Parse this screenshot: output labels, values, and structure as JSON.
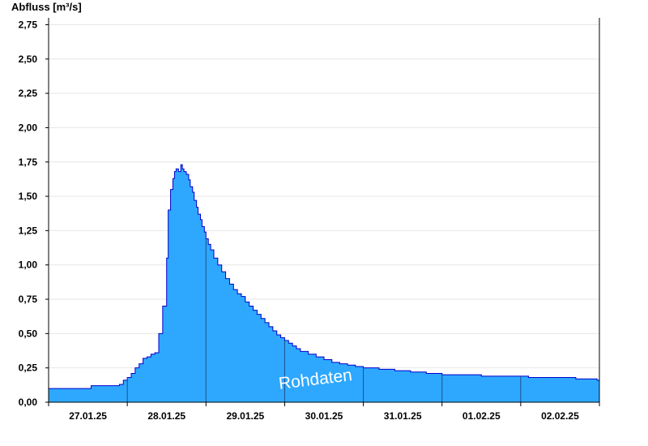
{
  "chart_data": {
    "type": "area",
    "ylabel": "Abfluss [m³/s]",
    "ylim": [
      0,
      2.8
    ],
    "yticks": [
      "0,00",
      "0,25",
      "0,50",
      "0,75",
      "1,00",
      "1,25",
      "1,50",
      "1,75",
      "2,00",
      "2,25",
      "2,50",
      "2,75"
    ],
    "xlabels": [
      "27.01.25",
      "28.01.25",
      "29.01.25",
      "30.01.25",
      "31.01.25",
      "01.02.25",
      "02.02.25"
    ],
    "xlim_days": [
      0,
      7
    ],
    "grid": true,
    "watermark": "Rohdaten",
    "fill_color": "#2ea8ff",
    "line_color": "#0000cc",
    "series": [
      {
        "x": [
          0.0,
          0.54,
          0.9,
          0.95,
          1.0,
          1.05,
          1.1,
          1.15,
          1.2,
          1.25,
          1.3,
          1.35,
          1.4,
          1.45,
          1.5,
          1.52,
          1.55,
          1.58,
          1.6,
          1.62,
          1.65,
          1.68,
          1.7,
          1.72,
          1.75,
          1.78,
          1.8,
          1.83,
          1.85,
          1.88,
          1.9,
          1.93,
          1.95,
          1.98,
          2.0,
          2.03,
          2.06,
          2.1,
          2.15,
          2.2,
          2.25,
          2.3,
          2.35,
          2.4,
          2.45,
          2.5,
          2.55,
          2.6,
          2.65,
          2.7,
          2.75,
          2.8,
          2.85,
          2.9,
          2.95,
          3.0,
          3.05,
          3.1,
          3.15,
          3.2,
          3.3,
          3.4,
          3.5,
          3.6,
          3.7,
          3.8,
          3.9,
          4.0,
          4.2,
          4.4,
          4.6,
          4.8,
          5.0,
          5.27,
          5.5,
          5.9,
          6.0,
          6.1,
          6.5,
          6.7,
          6.97,
          7.0
        ],
        "y": [
          0.1,
          0.12,
          0.13,
          0.16,
          0.18,
          0.21,
          0.25,
          0.28,
          0.32,
          0.33,
          0.35,
          0.36,
          0.5,
          0.7,
          1.05,
          1.4,
          1.55,
          1.63,
          1.68,
          1.7,
          1.68,
          1.73,
          1.7,
          1.68,
          1.66,
          1.62,
          1.57,
          1.53,
          1.47,
          1.42,
          1.37,
          1.33,
          1.28,
          1.24,
          1.19,
          1.15,
          1.11,
          1.05,
          1.0,
          0.95,
          0.9,
          0.86,
          0.82,
          0.79,
          0.77,
          0.73,
          0.7,
          0.67,
          0.64,
          0.61,
          0.58,
          0.55,
          0.52,
          0.49,
          0.47,
          0.45,
          0.43,
          0.41,
          0.39,
          0.37,
          0.35,
          0.33,
          0.31,
          0.29,
          0.28,
          0.27,
          0.26,
          0.25,
          0.24,
          0.23,
          0.22,
          0.21,
          0.2,
          0.2,
          0.19,
          0.19,
          0.19,
          0.18,
          0.18,
          0.17,
          0.16,
          0.16
        ]
      }
    ]
  }
}
